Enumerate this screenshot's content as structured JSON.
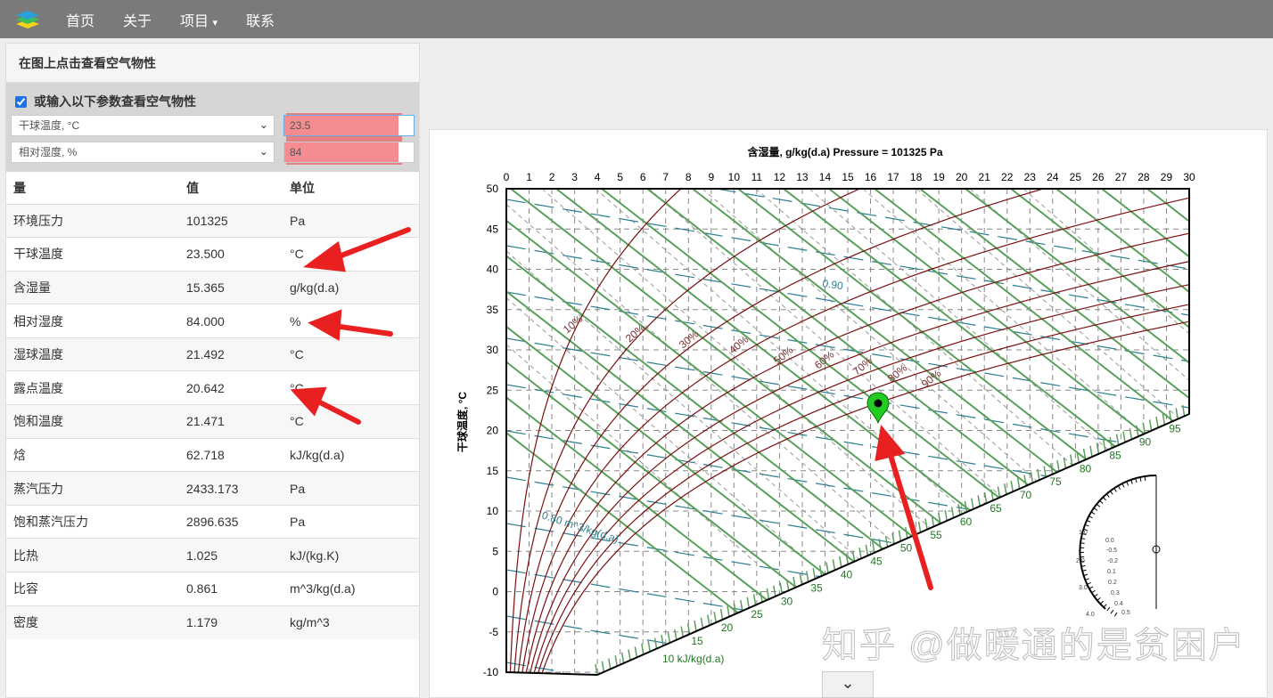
{
  "nav": {
    "items": [
      "首页",
      "关于",
      "项目",
      "联系"
    ],
    "dropdown_caret": "▾"
  },
  "panel": {
    "title": "在图上点击查看空气物性",
    "input_toggle_label": "或输入以下参数查看空气物性",
    "input_toggle_checked": true,
    "param1": {
      "select": "干球温度, °C",
      "value": "23.5"
    },
    "param2": {
      "select": "相对湿度, %",
      "value": "84"
    },
    "table": {
      "headers": [
        "量",
        "值",
        "单位"
      ],
      "rows": [
        [
          "环境压力",
          "101325",
          "Pa"
        ],
        [
          "干球温度",
          "23.500",
          "°C"
        ],
        [
          "含湿量",
          "15.365",
          "g/kg(d.a)"
        ],
        [
          "相对湿度",
          "84.000",
          "%"
        ],
        [
          "湿球温度",
          "21.492",
          "°C"
        ],
        [
          "露点温度",
          "20.642",
          "°C"
        ],
        [
          "饱和温度",
          "21.471",
          "°C"
        ],
        [
          "焓",
          "62.718",
          "kJ/kg(d.a)"
        ],
        [
          "蒸汽压力",
          "2433.173",
          "Pa"
        ],
        [
          "饱和蒸汽压力",
          "2896.635",
          "Pa"
        ],
        [
          "比热",
          "1.025",
          "kJ/(kg.K)"
        ],
        [
          "比容",
          "0.861",
          "m^3/kg(d.a)"
        ],
        [
          "密度",
          "1.179",
          "kg/m^3"
        ]
      ]
    }
  },
  "chart_data": {
    "type": "line",
    "title": "含湿量, g/kg(d.a) Pressure = 101325 Pa",
    "xlabel": "含湿量, g/kg(d.a)",
    "ylabel": "干球温度, °C",
    "xlim": [
      0,
      30
    ],
    "ylim": [
      -10,
      50
    ],
    "x_ticks": [
      0,
      1,
      2,
      3,
      4,
      5,
      6,
      7,
      8,
      9,
      10,
      11,
      12,
      13,
      14,
      15,
      16,
      17,
      18,
      19,
      20,
      21,
      22,
      23,
      24,
      25,
      26,
      27,
      28,
      29,
      30
    ],
    "y_ticks": [
      -10,
      -5,
      0,
      5,
      10,
      15,
      20,
      25,
      30,
      35,
      40,
      45,
      50
    ],
    "rh_curves": [
      10,
      20,
      30,
      40,
      50,
      60,
      70,
      80,
      90
    ],
    "rh_labels": [
      "10%",
      "20%",
      "30%",
      "40%",
      "50%",
      "60%",
      "70%",
      "80%",
      "90%"
    ],
    "enthalpy_labels": [
      15,
      20,
      25,
      30,
      35,
      40,
      45,
      50,
      55,
      60,
      65,
      70,
      75,
      80,
      85,
      90,
      95
    ],
    "enthalpy_first_label": "10 kJ/kg(d.a)",
    "volume_labels": [
      "0.90",
      "0.80 m^3/kg(d.a)"
    ],
    "grid": true,
    "marker": {
      "dry_bulb": 23.5,
      "humidity_ratio": 15.365,
      "color": "#22cc22"
    },
    "colors": {
      "rh": "#7a1010",
      "enthalpy": "#5aa05a",
      "volume": "#2a7f8f",
      "wetbulb": "#999999"
    },
    "protractor_labels": [
      "1.0",
      "2.0",
      "3.0",
      "4.0",
      "0.0",
      "-0.5",
      "-0.2",
      "0.1",
      "0.2",
      "0.3",
      "0.4",
      "0.5"
    ]
  },
  "watermark": "知乎 @做暖通的是贫困户",
  "scroll_down": "⌄"
}
